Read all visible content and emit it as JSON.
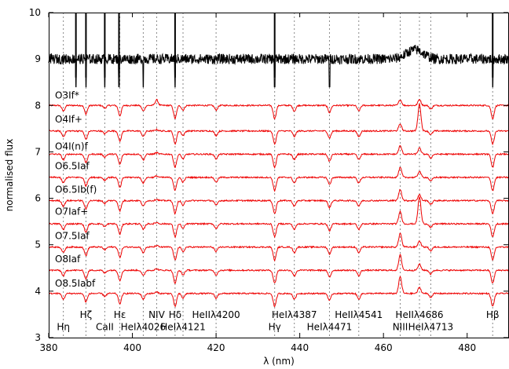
{
  "chart_data": {
    "type": "line",
    "title": "",
    "xlabel": "λ (nm)",
    "ylabel": "normalised flux",
    "xlim": [
      380,
      490
    ],
    "ylim": [
      3,
      10
    ],
    "x_ticks": [
      380,
      400,
      420,
      440,
      460,
      480
    ],
    "y_ticks": [
      3,
      4,
      5,
      6,
      7,
      8,
      9,
      10
    ],
    "grid": false,
    "top_spectrum_color": "#000000",
    "series_color": "#ee0000",
    "series": [
      {
        "name": "O3If*",
        "offset": 8.0,
        "label_y": 8.15
      },
      {
        "name": "O4If+",
        "offset": 7.45,
        "label_y": 7.63
      },
      {
        "name": "O4I(n)f",
        "offset": 6.95,
        "label_y": 7.05
      },
      {
        "name": "O6.5Iaf",
        "offset": 6.45,
        "label_y": 6.63
      },
      {
        "name": "O6.5Ib(f)",
        "offset": 5.95,
        "label_y": 6.12
      },
      {
        "name": "O7Iaf+",
        "offset": 5.45,
        "label_y": 5.65
      },
      {
        "name": "O7.5Iaf",
        "offset": 4.95,
        "label_y": 5.12
      },
      {
        "name": "O8Iaf",
        "offset": 4.45,
        "label_y": 4.62
      },
      {
        "name": "O8.5Iabf",
        "offset": 3.95,
        "label_y": 4.1
      }
    ],
    "top_spectrum": {
      "offset": 9.0
    },
    "line_markers": [
      {
        "label": "Hη",
        "wavelength": 383.5,
        "row": 2
      },
      {
        "label": "Hζ",
        "wavelength": 388.9,
        "row": 1
      },
      {
        "label": "CaII",
        "wavelength": 393.4,
        "row": 2
      },
      {
        "label": "Hε",
        "wavelength": 397.0,
        "row": 1
      },
      {
        "label": "HeIλ4026",
        "wavelength": 402.6,
        "row": 2
      },
      {
        "label": "NIV",
        "wavelength": 405.8,
        "row": 1
      },
      {
        "label": "Hδ",
        "wavelength": 410.2,
        "row": 1
      },
      {
        "label": "HeIλ4121",
        "wavelength": 412.1,
        "row": 2
      },
      {
        "label": "HeIIλ4200",
        "wavelength": 420.0,
        "row": 1
      },
      {
        "label": "Hγ",
        "wavelength": 434.0,
        "row": 2
      },
      {
        "label": "HeIλ4387",
        "wavelength": 438.7,
        "row": 1
      },
      {
        "label": "HeIλ4471",
        "wavelength": 447.1,
        "row": 2
      },
      {
        "label": "HeIIλ4541",
        "wavelength": 454.1,
        "row": 1
      },
      {
        "label": "NIII",
        "wavelength": 464.0,
        "row": 2
      },
      {
        "label": "HeIIλ4686",
        "wavelength": 468.6,
        "row": 1
      },
      {
        "label": "HeIλ4713",
        "wavelength": 471.3,
        "row": 2
      },
      {
        "label": "Hβ",
        "wavelength": 486.1,
        "row": 1
      }
    ]
  }
}
